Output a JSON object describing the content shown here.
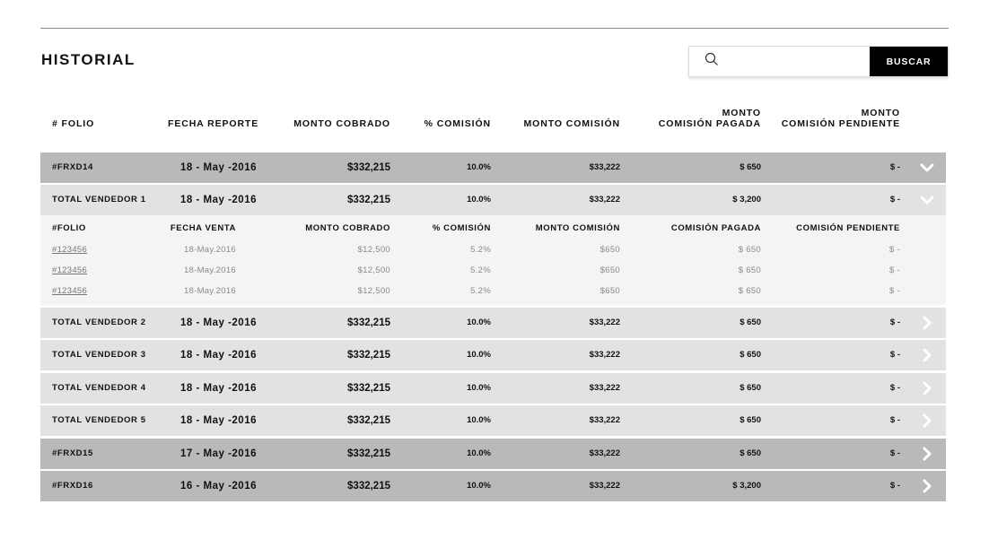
{
  "page": {
    "title": "HISTORIAL"
  },
  "search": {
    "placeholder": "",
    "value": "",
    "button_label": "BUSCAR",
    "icon": "search-icon"
  },
  "columns": {
    "folio": "# FOLIO",
    "fecha_reporte": "FECHA REPORTE",
    "monto_cobrado": "MONTO COBRADO",
    "comision_pct": "% COMISIÓN",
    "monto_comision": "MONTO COMISIÓN",
    "comision_pagada_line1": "MONTO",
    "comision_pagada_line2": "COMISIÓN PAGADA",
    "comision_pendiente_line1": "MONTO",
    "comision_pendiente_line2": "COMISIÓN PENDIENTE"
  },
  "rows": [
    {
      "folio": "#FRXD14",
      "fecha": "18 - May -2016",
      "cobrado": "$332,215",
      "pct": "10.0%",
      "mcom": "$33,222",
      "pagada": "$ 650",
      "pend": "$ -",
      "shade": "dark",
      "chevron": "chevron-down-icon"
    },
    {
      "folio": "TOTAL VENDEDOR 1",
      "fecha": "18 - May -2016",
      "cobrado": "$332,215",
      "pct": "10.0%",
      "mcom": "$33,222",
      "pagada": "$ 3,200",
      "pend": "$ -",
      "shade": "light",
      "chevron": "chevron-down-icon"
    },
    {
      "folio": "TOTAL VENDEDOR 2",
      "fecha": "18 - May -2016",
      "cobrado": "$332,215",
      "pct": "10.0%",
      "mcom": "$33,222",
      "pagada": "$ 650",
      "pend": "$ -",
      "shade": "light",
      "chevron": "chevron-right-icon"
    },
    {
      "folio": "TOTAL VENDEDOR 3",
      "fecha": "18 - May -2016",
      "cobrado": "$332,215",
      "pct": "10.0%",
      "mcom": "$33,222",
      "pagada": "$ 650",
      "pend": "$ -",
      "shade": "light",
      "chevron": "chevron-right-icon"
    },
    {
      "folio": "TOTAL VENDEDOR 4",
      "fecha": "18 - May -2016",
      "cobrado": "$332,215",
      "pct": "10.0%",
      "mcom": "$33,222",
      "pagada": "$ 650",
      "pend": "$ -",
      "shade": "light",
      "chevron": "chevron-right-icon"
    },
    {
      "folio": "TOTAL VENDEDOR 5",
      "fecha": "18 - May -2016",
      "cobrado": "$332,215",
      "pct": "10.0%",
      "mcom": "$33,222",
      "pagada": "$ 650",
      "pend": "$ -",
      "shade": "light",
      "chevron": "chevron-right-icon"
    },
    {
      "folio": "#FRXD15",
      "fecha": "17 - May -2016",
      "cobrado": "$332,215",
      "pct": "10.0%",
      "mcom": "$33,222",
      "pagada": "$ 650",
      "pend": "$ -",
      "shade": "dark",
      "chevron": "chevron-right-icon"
    },
    {
      "folio": "#FRXD16",
      "fecha": "16 - May -2016",
      "cobrado": "$332,215",
      "pct": "10.0%",
      "mcom": "$33,222",
      "pagada": "$ 3,200",
      "pend": "$ -",
      "shade": "dark",
      "chevron": "chevron-right-icon"
    }
  ],
  "detail": {
    "headers": {
      "folio": "#FOLIO",
      "fecha": "FECHA VENTA",
      "cobrado": "MONTO COBRADO",
      "pct": "% COMISIÓN",
      "mcom": "MONTO COMISIÓN",
      "pagada": "COMISIÓN PAGADA",
      "pend": "COMISIÓN PENDIENTE"
    },
    "items": [
      {
        "folio": "#123456",
        "fecha": "18-May.2016",
        "cobrado": "$12,500",
        "pct": "5.2%",
        "mcom": "$650",
        "pagada": "$ 650",
        "pend": "$ -"
      },
      {
        "folio": "#123456",
        "fecha": "18-May.2016",
        "cobrado": "$12,500",
        "pct": "5.2%",
        "mcom": "$650",
        "pagada": "$ 650",
        "pend": "$ -"
      },
      {
        "folio": "#123456",
        "fecha": "18-May.2016",
        "cobrado": "$12,500",
        "pct": "5.2%",
        "mcom": "$650",
        "pagada": "$ 650",
        "pend": "$ -"
      }
    ]
  },
  "colors": {
    "row_dark": "#b9b9b9",
    "row_light": "#e2e2e2",
    "detail_bg": "#f4f4f4",
    "button_bg": "#000000",
    "chevron": "#ffffff"
  }
}
